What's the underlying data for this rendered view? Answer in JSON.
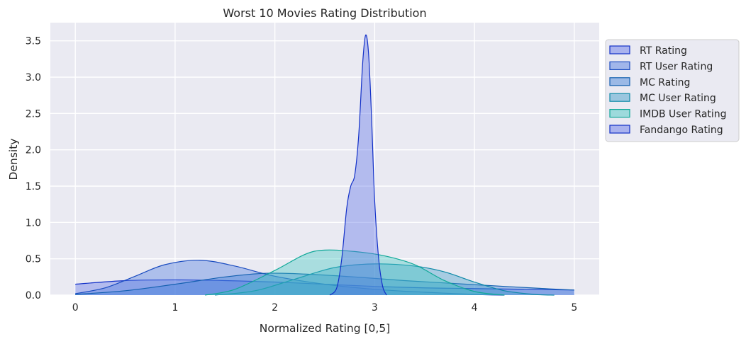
{
  "chart_data": {
    "type": "area",
    "title": "Worst 10 Movies Rating Distribution",
    "xlabel": "Normalized Rating [0,5]",
    "ylabel": "Density",
    "xlim": [
      -0.25,
      5.25
    ],
    "ylim": [
      0,
      3.75
    ],
    "x_ticks": [
      0,
      1,
      2,
      3,
      4,
      5
    ],
    "y_ticks": [
      0.0,
      0.5,
      1.0,
      1.5,
      2.0,
      2.5,
      3.0,
      3.5
    ],
    "x_tick_labels": [
      "0",
      "1",
      "2",
      "3",
      "4",
      "5"
    ],
    "y_tick_labels": [
      "0.0",
      "0.5",
      "1.0",
      "1.5",
      "2.0",
      "2.5",
      "3.0",
      "3.5"
    ],
    "grid": true,
    "legend_position": "right-outside-top",
    "series": [
      {
        "name": "RT Rating",
        "fill": "#5a6fe8",
        "stroke": "#1230c8",
        "points": [
          [
            0,
            0.15
          ],
          [
            0.5,
            0.2
          ],
          [
            1,
            0.21
          ],
          [
            1.5,
            0.2
          ],
          [
            2,
            0.18
          ],
          [
            2.5,
            0.15
          ],
          [
            3,
            0.12
          ],
          [
            3.5,
            0.1
          ],
          [
            4,
            0.09
          ],
          [
            4.5,
            0.08
          ],
          [
            5,
            0.07
          ]
        ]
      },
      {
        "name": "RT User Rating",
        "fill": "#4a78e0",
        "stroke": "#1a4cc0",
        "points": [
          [
            0,
            0.02
          ],
          [
            0.3,
            0.1
          ],
          [
            0.6,
            0.26
          ],
          [
            0.9,
            0.42
          ],
          [
            1.25,
            0.48
          ],
          [
            1.6,
            0.4
          ],
          [
            2,
            0.26
          ],
          [
            2.5,
            0.15
          ],
          [
            3,
            0.08
          ],
          [
            3.5,
            0.04
          ],
          [
            4,
            0.01
          ],
          [
            4.3,
            0
          ]
        ]
      },
      {
        "name": "MC Rating",
        "fill": "#3c7fd8",
        "stroke": "#1460b0",
        "points": [
          [
            0,
            0.01
          ],
          [
            0.5,
            0.06
          ],
          [
            1,
            0.15
          ],
          [
            1.5,
            0.25
          ],
          [
            1.9,
            0.3
          ],
          [
            2.3,
            0.29
          ],
          [
            2.8,
            0.25
          ],
          [
            3.3,
            0.2
          ],
          [
            3.8,
            0.16
          ],
          [
            4.3,
            0.12
          ],
          [
            4.7,
            0.09
          ],
          [
            5,
            0.07
          ]
        ]
      },
      {
        "name": "MC User Rating",
        "fill": "#3a9cc8",
        "stroke": "#0e8aa8",
        "points": [
          [
            1.4,
            0
          ],
          [
            1.8,
            0.06
          ],
          [
            2.2,
            0.22
          ],
          [
            2.6,
            0.38
          ],
          [
            3,
            0.43
          ],
          [
            3.4,
            0.4
          ],
          [
            3.7,
            0.32
          ],
          [
            4,
            0.18
          ],
          [
            4.3,
            0.06
          ],
          [
            4.6,
            0.01
          ],
          [
            4.8,
            0
          ]
        ]
      },
      {
        "name": "IMDB User Rating",
        "fill": "#40c8c0",
        "stroke": "#10a898",
        "points": [
          [
            1.3,
            0
          ],
          [
            1.6,
            0.08
          ],
          [
            2,
            0.34
          ],
          [
            2.3,
            0.56
          ],
          [
            2.5,
            0.62
          ],
          [
            2.8,
            0.6
          ],
          [
            3.1,
            0.54
          ],
          [
            3.4,
            0.42
          ],
          [
            3.7,
            0.2
          ],
          [
            4,
            0.05
          ],
          [
            4.3,
            0
          ]
        ]
      },
      {
        "name": "Fandango Rating",
        "fill": "#5a6fe8",
        "stroke": "#1230c8",
        "points": [
          [
            2.55,
            0
          ],
          [
            2.62,
            0.1
          ],
          [
            2.67,
            0.5
          ],
          [
            2.72,
            1.2
          ],
          [
            2.76,
            1.5
          ],
          [
            2.8,
            1.65
          ],
          [
            2.84,
            2.2
          ],
          [
            2.88,
            3.2
          ],
          [
            2.91,
            3.58
          ],
          [
            2.94,
            3.3
          ],
          [
            2.97,
            2.4
          ],
          [
            3.0,
            1.3
          ],
          [
            3.04,
            0.5
          ],
          [
            3.08,
            0.12
          ],
          [
            3.12,
            0
          ]
        ]
      }
    ]
  }
}
